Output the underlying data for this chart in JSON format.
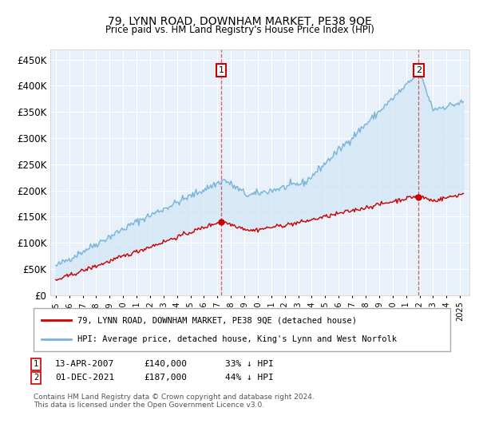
{
  "title": "79, LYNN ROAD, DOWNHAM MARKET, PE38 9QE",
  "subtitle": "Price paid vs. HM Land Registry's House Price Index (HPI)",
  "legend_line1": "79, LYNN ROAD, DOWNHAM MARKET, PE38 9QE (detached house)",
  "legend_line2": "HPI: Average price, detached house, King's Lynn and West Norfolk",
  "annotation1_label": "1",
  "annotation1_date": "13-APR-2007",
  "annotation1_price": "£140,000",
  "annotation1_note": "33% ↓ HPI",
  "annotation2_label": "2",
  "annotation2_date": "01-DEC-2021",
  "annotation2_price": "£187,000",
  "annotation2_note": "44% ↓ HPI",
  "footnote": "Contains HM Land Registry data © Crown copyright and database right 2024.\nThis data is licensed under the Open Government Licence v3.0.",
  "hpi_color": "#7ab4d8",
  "hpi_fill_color": "#d0e5f5",
  "price_color": "#cc0000",
  "annotation_box_color": "#cc0000",
  "plot_bg_color": "#e8f0fa",
  "ylim": [
    0,
    470000
  ],
  "yticks": [
    0,
    50000,
    100000,
    150000,
    200000,
    250000,
    300000,
    350000,
    400000,
    450000
  ],
  "sale1_year": 2007.28,
  "sale1_value": 140000,
  "sale2_year": 2021.92,
  "sale2_value": 187000
}
